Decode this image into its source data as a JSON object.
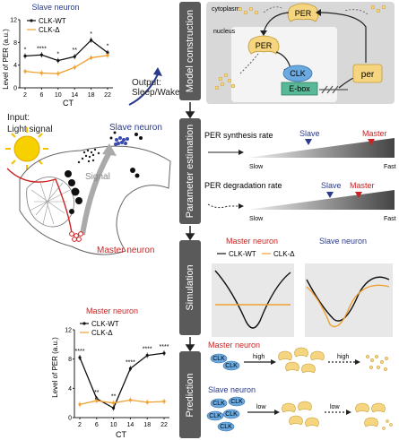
{
  "stages": [
    "Model construction",
    "Parameter estimation",
    "Simulation",
    "Prediction"
  ],
  "left": {
    "output_label": "Output:\nSleep/Wake",
    "input_label_1": "Input:",
    "input_label_2": "Light signal",
    "slave_neuron_label": "Slave neuron",
    "signal_label": "Signal",
    "master_neuron_label": "Master neuron"
  },
  "model": {
    "cytoplasm": "cytoplasm",
    "nucleus": "nucleus",
    "per_protein": "PER",
    "per_protein_nucleus": "PER",
    "clk": "CLK",
    "ebox": "E-box",
    "per_gene": "per"
  },
  "params": {
    "synthesis": "PER synthesis rate",
    "degradation": "PER degradation rate",
    "slow": "Slow",
    "fast": "Fast",
    "slave": "Slave",
    "master": "Master"
  },
  "simulation": {
    "master_title": "Master neuron",
    "slave_title": "Slave neuron",
    "legend_wt": "CLK-WT",
    "legend_delta": "CLK-Δ"
  },
  "prediction": {
    "master_title": "Master neuron",
    "slave_title": "Slave neuron",
    "high_1": "high",
    "high_2": "high",
    "low_1": "low",
    "low_2": "low",
    "clk": "CLK",
    "per": "PER"
  },
  "colors": {
    "wt": "#111111",
    "delta": "#f0a030",
    "master": "#cc2222",
    "slave": "#2a3a8c",
    "stage": "#5a5a5a",
    "per": "#f5d580"
  },
  "chart_data": [
    {
      "type": "line",
      "title": "Slave neuron",
      "xlabel": "CT",
      "ylabel": "Level of PER (a.u.)",
      "x": [
        2,
        6,
        10,
        14,
        18,
        22
      ],
      "ylim": [
        0,
        12
      ],
      "yticks": [
        0,
        4,
        8,
        12
      ],
      "series": [
        {
          "name": "CLK-WT",
          "values": [
            5.6,
            5.8,
            4.8,
            5.5,
            8.4,
            6.2
          ]
        },
        {
          "name": "CLK-Δ",
          "values": [
            2.9,
            2.6,
            2.5,
            3.6,
            5.3,
            5.7
          ]
        }
      ],
      "annotations": [
        "*",
        "****",
        "*",
        "**",
        "*",
        "*"
      ]
    },
    {
      "type": "line",
      "title": "Master neuron",
      "xlabel": "CT",
      "ylabel": "Level of PER (a.u.)",
      "x": [
        2,
        6,
        10,
        14,
        18,
        22
      ],
      "ylim": [
        0,
        12
      ],
      "yticks": [
        0,
        4,
        8,
        12
      ],
      "series": [
        {
          "name": "CLK-WT",
          "values": [
            8.2,
            2.6,
            1.3,
            6.7,
            8.5,
            8.8
          ]
        },
        {
          "name": "CLK-Δ",
          "values": [
            1.8,
            2.3,
            2.0,
            2.4,
            2.1,
            2.2
          ]
        }
      ],
      "annotations": [
        "****",
        "**",
        "**",
        "****",
        "****",
        "****"
      ]
    }
  ]
}
